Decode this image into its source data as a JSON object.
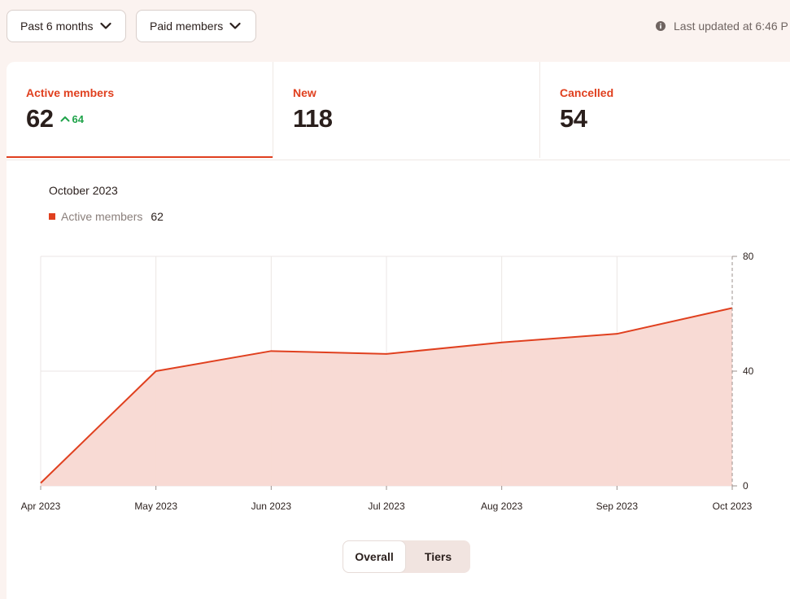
{
  "filters": {
    "period_label": "Past 6 months",
    "audience_label": "Paid members"
  },
  "last_updated": "Last updated at 6:46 P",
  "stats": [
    {
      "label": "Active members",
      "value": "62",
      "delta": "64"
    },
    {
      "label": "New",
      "value": "118"
    },
    {
      "label": "Cancelled",
      "value": "54"
    }
  ],
  "tooltip": {
    "date": "October 2023",
    "series_label": "Active members",
    "series_value": "62"
  },
  "toggle": {
    "overall": "Overall",
    "tiers": "Tiers"
  },
  "colors": {
    "accent": "#e0401f",
    "fill": "#f8d8d2",
    "positive": "#1fa34a"
  },
  "chart_data": {
    "type": "area",
    "x": [
      "Apr 2023",
      "May 2023",
      "Jun 2023",
      "Jul 2023",
      "Aug 2023",
      "Sep 2023",
      "Oct 2023"
    ],
    "series": [
      {
        "name": "Active members",
        "values": [
          1,
          40,
          47,
          46,
          50,
          53,
          62
        ]
      }
    ],
    "y_ticks": [
      "0",
      "40",
      "80"
    ],
    "ylim": [
      0,
      80
    ],
    "y_axis_side": "right",
    "grid": true
  }
}
